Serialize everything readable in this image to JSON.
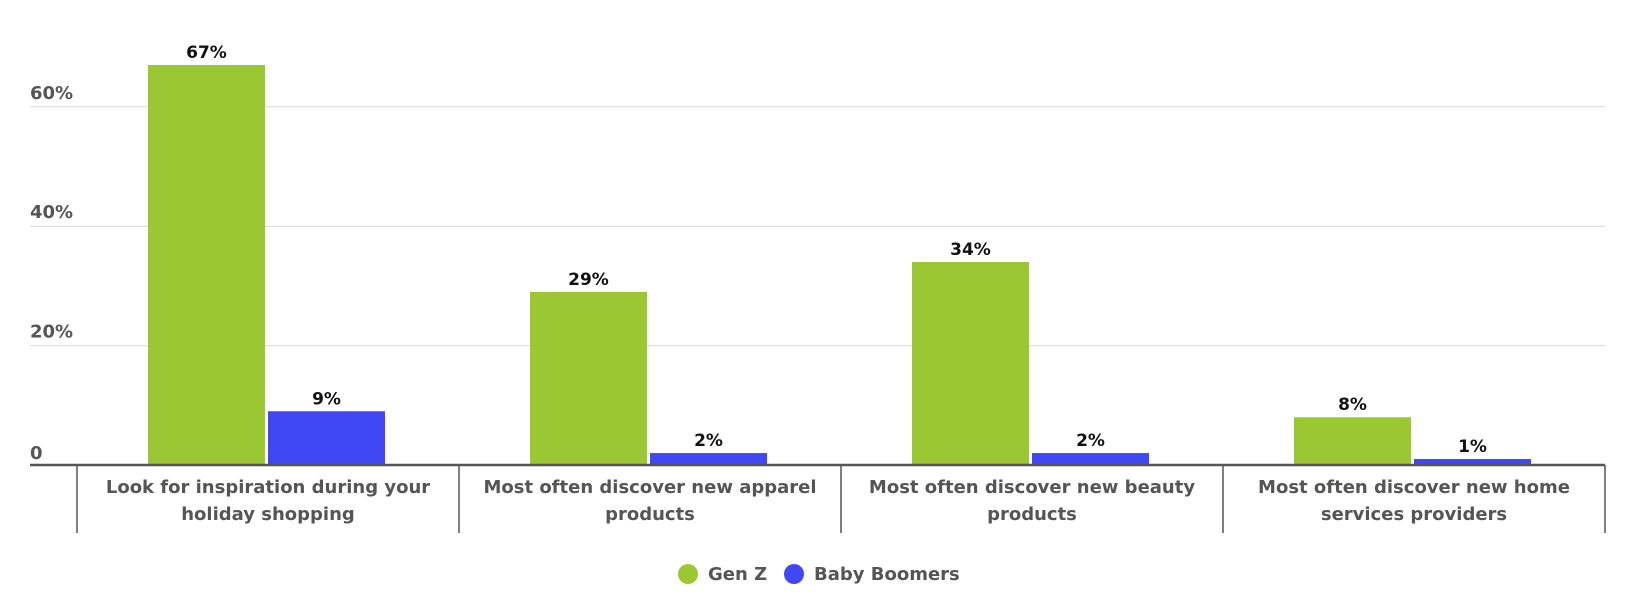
{
  "chart_data": {
    "type": "bar",
    "categories": [
      [
        "Look for inspiration during your",
        "holiday shopping"
      ],
      [
        "Most often discover new apparel",
        "products"
      ],
      [
        "Most often discover new beauty",
        "products"
      ],
      [
        "Most often discover new home",
        "services providers"
      ]
    ],
    "series": [
      {
        "name": "Gen Z",
        "color": "#9BC832",
        "values": [
          67,
          29,
          34,
          8
        ],
        "labels": [
          "67%",
          "29%",
          "34%",
          "8%"
        ]
      },
      {
        "name": "Baby Boomers",
        "color": "#4048F5",
        "values": [
          9,
          2,
          2,
          1
        ],
        "labels": [
          "9%",
          "2%",
          "2%",
          "1%"
        ]
      }
    ],
    "yticks": [
      {
        "value": 0,
        "label": "0"
      },
      {
        "value": 20,
        "label": "20%"
      },
      {
        "value": 40,
        "label": "40%"
      },
      {
        "value": 60,
        "label": "60%"
      }
    ],
    "ylim": [
      0,
      70
    ],
    "grid": true,
    "legend_position": "bottom-center",
    "title": "",
    "xlabel": "",
    "ylabel": ""
  }
}
